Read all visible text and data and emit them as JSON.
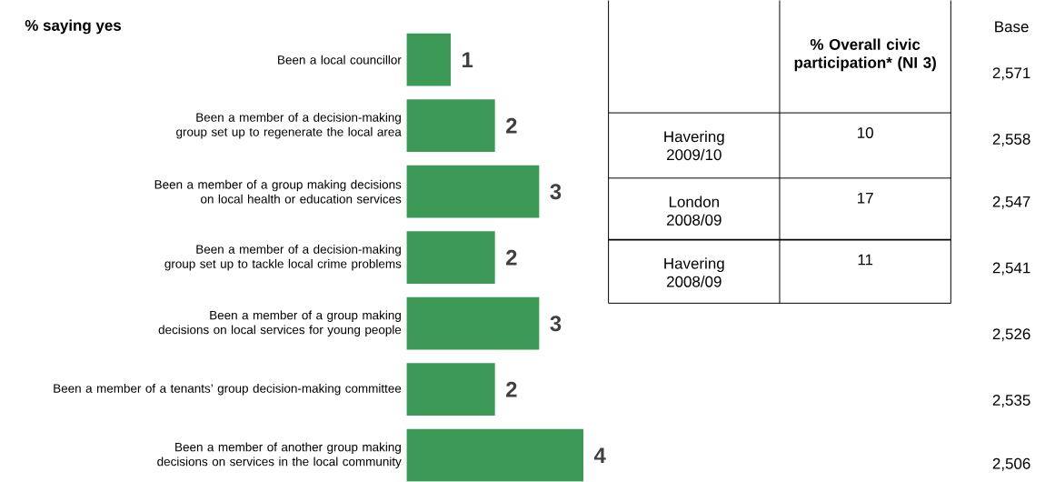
{
  "chart_data": {
    "type": "bar",
    "orientation": "horizontal",
    "title": "% saying yes",
    "categories": [
      "Been a local councillor",
      "Been a member of a decision-making group set up to regenerate the local area",
      "Been a member of a group making decisions on local health or education services",
      "Been a member of a decision-making group set up to tackle local crime problems",
      "Been a member of a group making decisions on local services for young people",
      "Been a member of a tenants’ group decision-making committee",
      "Been a member of another group making decisions on services in the local community"
    ],
    "values": [
      1,
      2,
      3,
      2,
      3,
      2,
      4
    ],
    "color": "#3d9956",
    "data_labels": true,
    "annotations": [
      "% Overall civic participation* (NI 3)",
      "Havering 2009/10",
      "10",
      "London 2008/09",
      "17",
      "Havering 2008/09",
      "11",
      "Base",
      "2,571",
      "2,558",
      "2,547",
      "2,541",
      "2,526",
      "2,535",
      "2,506"
    ]
  }
}
